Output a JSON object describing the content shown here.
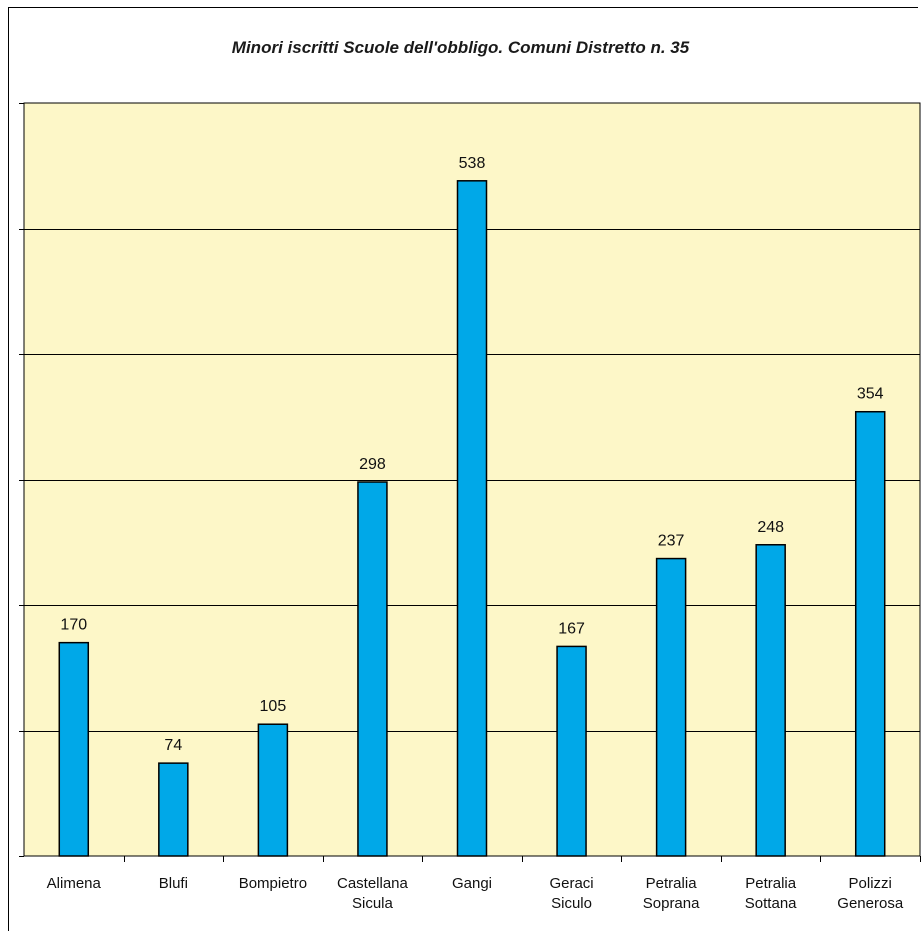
{
  "chart_data": {
    "type": "bar",
    "title": "Minori iscritti Scuole dell'obbligo. Comuni Distretto n. 35",
    "categories": [
      [
        "Alimena"
      ],
      [
        "Blufi"
      ],
      [
        "Bompietro"
      ],
      [
        "Castellana",
        "Sicula"
      ],
      [
        "Gangi"
      ],
      [
        "Geraci",
        "Siculo"
      ],
      [
        "Petralia",
        "Soprana"
      ],
      [
        "Petralia",
        "Sottana"
      ],
      [
        "Polizzi",
        "Generosa"
      ]
    ],
    "values": [
      170,
      74,
      105,
      298,
      538,
      167,
      237,
      248,
      354
    ],
    "ylim": [
      0,
      600
    ],
    "grid": true,
    "colors": {
      "plot_background": "#fdf7c8",
      "bar_fill": "#00a8e8",
      "bar_stroke": "#000000",
      "grid": "#000000"
    }
  }
}
